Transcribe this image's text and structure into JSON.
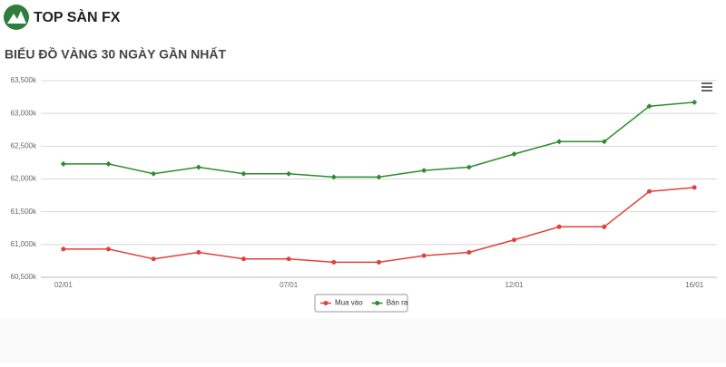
{
  "header": {
    "logo_text": "TOP SÀN FX"
  },
  "chart_data": {
    "type": "line",
    "title": "BIỂU ĐỒ VÀNG 30 NGÀY GẦN NHẤT",
    "categories": [
      "02/01",
      null,
      null,
      null,
      null,
      "07/01",
      null,
      null,
      null,
      null,
      "12/01",
      null,
      null,
      null,
      "16/01"
    ],
    "series": [
      {
        "name": "Mua vào",
        "color": "#e0413a",
        "values": [
          60930,
          60930,
          60780,
          60880,
          60780,
          60780,
          60730,
          60730,
          60830,
          60880,
          61070,
          61270,
          61270,
          61810,
          61870
        ]
      },
      {
        "name": "Bán ra",
        "color": "#2e8b2e",
        "values": [
          62230,
          62230,
          62080,
          62180,
          62080,
          62080,
          62030,
          62030,
          62130,
          62180,
          62380,
          62570,
          62570,
          63110,
          63170
        ]
      }
    ],
    "ylim": [
      60500,
      63500
    ],
    "yticks": [
      {
        "value": 60500,
        "label": "60,500k"
      },
      {
        "value": 61000,
        "label": "61,000k"
      },
      {
        "value": 61500,
        "label": "61,500k"
      },
      {
        "value": 62000,
        "label": "62,000k"
      },
      {
        "value": 62500,
        "label": "62,500k"
      },
      {
        "value": 63000,
        "label": "63,000k"
      },
      {
        "value": 63500,
        "label": "63,500k"
      }
    ],
    "grid": true,
    "legend": "bottom"
  }
}
